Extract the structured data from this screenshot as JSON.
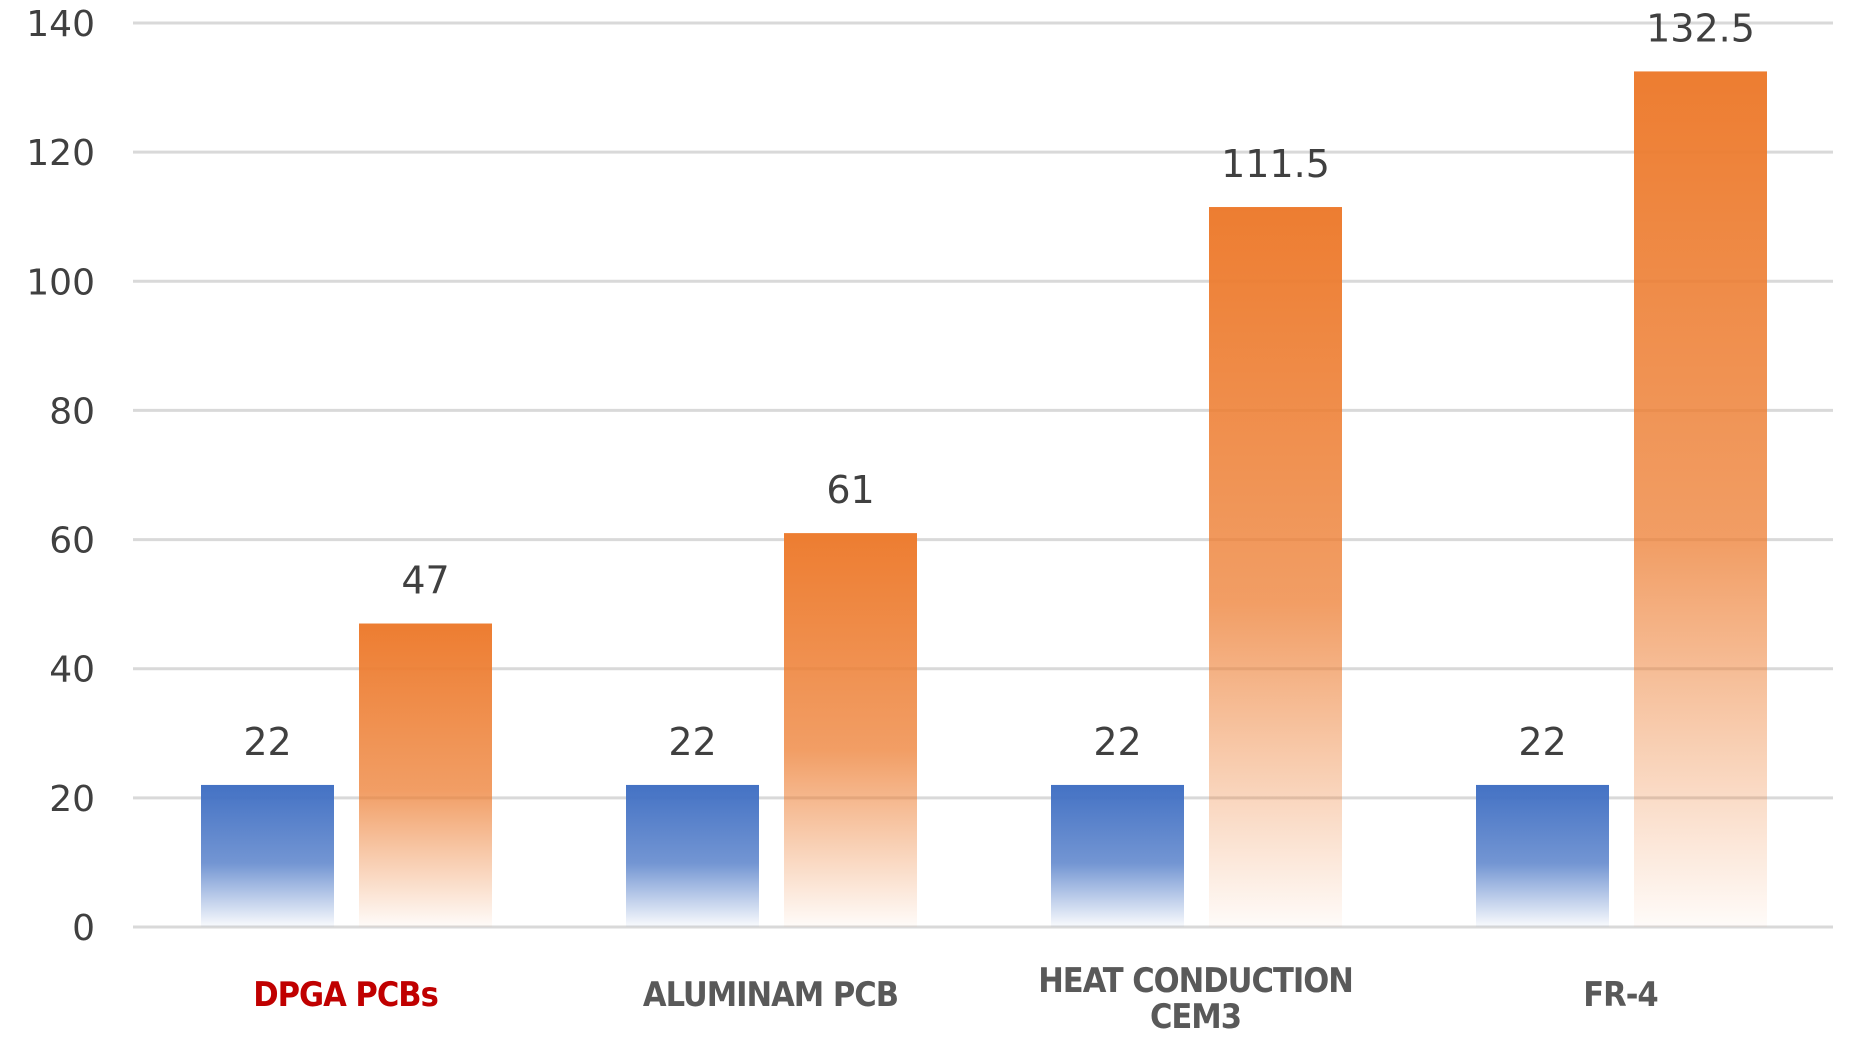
{
  "chart_data": {
    "type": "bar",
    "categories": [
      [
        "DPGA PCBs"
      ],
      [
        "ALUMINAM PCB"
      ],
      [
        "HEAT CONDUCTION",
        "CEM3"
      ],
      [
        "FR-4"
      ]
    ],
    "series": [
      {
        "values": [
          22,
          22,
          22,
          22
        ],
        "color": "#4472C4"
      },
      {
        "values": [
          47,
          61,
          111.5,
          132.5
        ],
        "color": "#ED7D31"
      }
    ],
    "data_labels": [
      [
        "22",
        "22",
        "22",
        "22"
      ],
      [
        "47",
        "61",
        "111.5",
        "132.5"
      ]
    ],
    "category_label_colors": [
      "#C00000",
      "#595959",
      "#595959",
      "#595959"
    ],
    "ylim": [
      0,
      140
    ],
    "yticks": [
      0,
      20,
      40,
      60,
      80,
      100,
      120,
      140
    ],
    "title": "",
    "xlabel": "",
    "ylabel": "",
    "grid": true,
    "legend": "none",
    "gridline_color": "#D9D9D9"
  }
}
